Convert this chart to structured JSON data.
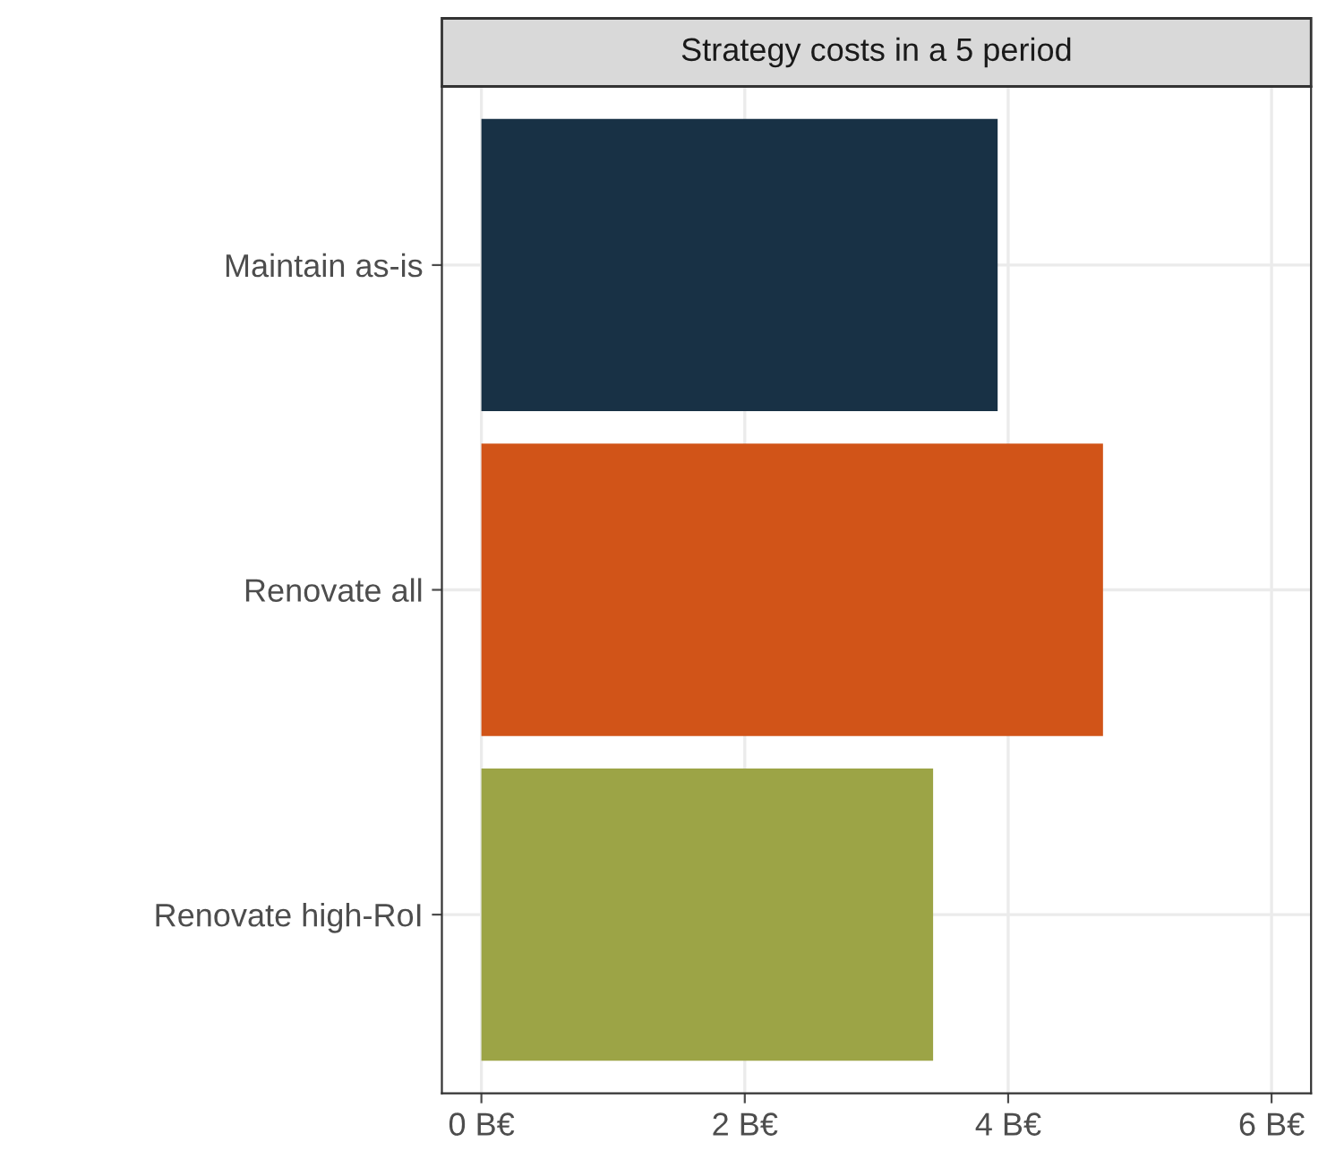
{
  "chart_data": {
    "type": "bar",
    "orientation": "horizontal",
    "title": "Strategy costs in a 5 period",
    "categories": [
      "Maintain as-is",
      "Renovate all",
      "Renovate high-RoI"
    ],
    "values": [
      3.92,
      4.72,
      3.43
    ],
    "colors": [
      "#183145",
      "#d15418",
      "#9ca446"
    ],
    "xlim": [
      -0.3,
      6.3
    ],
    "xticks": [
      {
        "value": 0,
        "label": "0 B€"
      },
      {
        "value": 2,
        "label": "2 B€"
      },
      {
        "value": 4,
        "label": "4 B€"
      },
      {
        "value": 6,
        "label": "6 B€"
      }
    ],
    "grid": true
  }
}
